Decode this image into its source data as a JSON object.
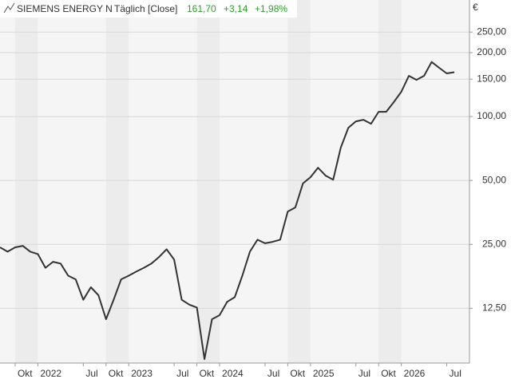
{
  "chart_data": {
    "type": "line",
    "title": "SIEMENS ENERGY N",
    "subtitle": "Täglich [Close]",
    "last": "161,70",
    "change": "+3,14",
    "change_pct": "+1,98%",
    "y_label": "€",
    "log_scale": true,
    "grid": true,
    "change_color": "#2ca02c",
    "xlim": [
      "2021-08",
      "2026-10"
    ],
    "ylim": [
      6.9,
      354
    ],
    "yticks": [
      {
        "value": 12.5,
        "label": "12,50"
      },
      {
        "value": 25,
        "label": "25,00"
      },
      {
        "value": 50,
        "label": "50,00"
      },
      {
        "value": 100,
        "label": "100,00"
      },
      {
        "value": 150,
        "label": "150,00"
      },
      {
        "value": 200,
        "label": "200,00"
      },
      {
        "value": 250,
        "label": "250,00"
      }
    ],
    "xticks": [
      {
        "value": "2021-10",
        "label": "Okt"
      },
      {
        "value": "2022-01",
        "label": "2022"
      },
      {
        "value": "2022-07",
        "label": "Jul"
      },
      {
        "value": "2022-10",
        "label": "Okt"
      },
      {
        "value": "2023-01",
        "label": "2023"
      },
      {
        "value": "2023-07",
        "label": "Jul"
      },
      {
        "value": "2023-10",
        "label": "Okt"
      },
      {
        "value": "2024-01",
        "label": "2024"
      },
      {
        "value": "2024-07",
        "label": "Jul"
      },
      {
        "value": "2024-10",
        "label": "Okt"
      },
      {
        "value": "2025-01",
        "label": "2025"
      },
      {
        "value": "2025-07",
        "label": "Jul"
      },
      {
        "value": "2025-10",
        "label": "Okt"
      },
      {
        "value": "2026-01",
        "label": "2026"
      },
      {
        "value": "2026-07",
        "label": "Jul"
      }
    ],
    "x": [
      "2021-08",
      "2021-09",
      "2021-10",
      "2021-11",
      "2021-12",
      "2022-01",
      "2022-02",
      "2022-03",
      "2022-04",
      "2022-05",
      "2022-06",
      "2022-07",
      "2022-08",
      "2022-09",
      "2022-10",
      "2022-11",
      "2022-12",
      "2023-01",
      "2023-02",
      "2023-03",
      "2023-04",
      "2023-05",
      "2023-06",
      "2023-07",
      "2023-08",
      "2023-09",
      "2023-10",
      "2023-11",
      "2023-12",
      "2024-01",
      "2024-02",
      "2024-03",
      "2024-04",
      "2024-05",
      "2024-06",
      "2024-07",
      "2024-08",
      "2024-09",
      "2024-10",
      "2024-11",
      "2024-12",
      "2025-01",
      "2025-02",
      "2025-03",
      "2025-04",
      "2025-05",
      "2025-06",
      "2025-07",
      "2025-08",
      "2025-09",
      "2025-10",
      "2025-11",
      "2025-12",
      "2026-01",
      "2026-02",
      "2026-03",
      "2026-04",
      "2026-05",
      "2026-06",
      "2026-07",
      "2026-08"
    ],
    "series": [
      {
        "name": "SIEMENS ENERGY N",
        "color": "#333333",
        "values": [
          24.2,
          23.1,
          24.2,
          24.6,
          23.1,
          22.5,
          19.4,
          20.7,
          20.3,
          17.8,
          17.1,
          13.7,
          15.7,
          14.4,
          11.1,
          13.7,
          17.1,
          17.8,
          18.6,
          19.4,
          20.3,
          21.8,
          23.7,
          21.2,
          13.7,
          13.0,
          12.6,
          7.2,
          11.1,
          11.6,
          13.4,
          14.1,
          17.8,
          23.1,
          26.3,
          25.3,
          25.7,
          26.3,
          35.7,
          37.3,
          48.4,
          51.8,
          57.4,
          52.7,
          50.4,
          71.4,
          88.6,
          94.9,
          96.6,
          92.5,
          105.3,
          105.3,
          116.9,
          130.8,
          155.6,
          148.8,
          155.6,
          180.7,
          169.6,
          159.7,
          161.7
        ]
      }
    ]
  }
}
